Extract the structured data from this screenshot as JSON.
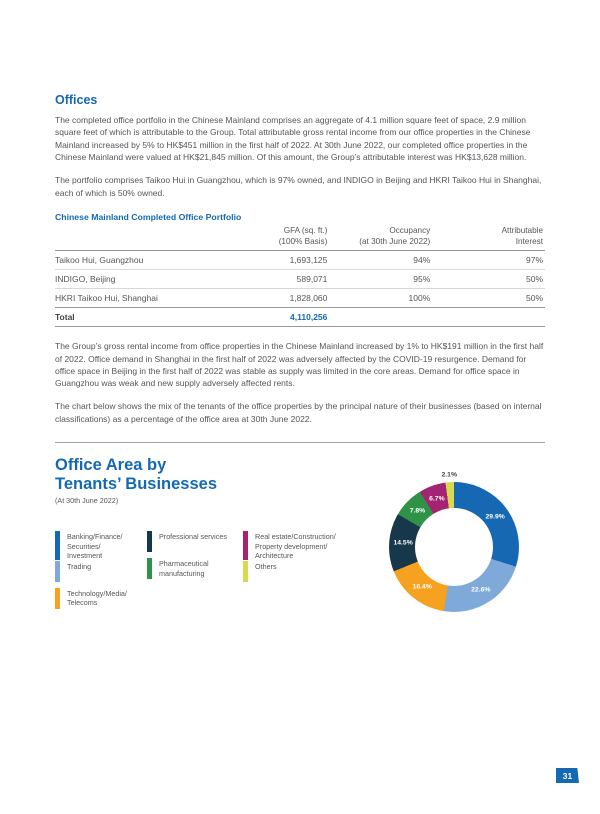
{
  "page": {
    "number": "31",
    "accent_blue": "#1569B3",
    "accent_green": "#3A9556",
    "body_text_color": "#54565A"
  },
  "offices": {
    "heading": "Offices",
    "para1": "The completed office portfolio in the Chinese Mainland comprises an aggregate of 4.1 million square feet of space, 2.9 million square feet of which is attributable to the Group. Total attributable gross rental income from our office properties in the Chinese Mainland increased by 5% to HK$451 million in the first half of 2022. At 30th June 2022, our completed office properties in the Chinese Mainland were valued at HK$21,845 million. Of this amount, the Group’s attributable interest was HK$13,628 million.",
    "para2": "The portfolio comprises Taikoo Hui in Guangzhou, which is 97% owned, and INDIGO in Beijing and HKRI Taikoo Hui in Shanghai, each of which is 50% owned."
  },
  "portfolio_table": {
    "title": "Chinese Mainland Completed Office Portfolio",
    "headers": {
      "gfa_line1": "GFA (sq. ft.)",
      "gfa_line2": "(100% Basis)",
      "occupancy_line1": "Occupancy",
      "occupancy_line2": "(at 30th June 2022)",
      "interest_line1": "Attributable",
      "interest_line2": "Interest"
    },
    "rows": [
      {
        "name": "Taikoo Hui, Guangzhou",
        "gfa": "1,693,125",
        "occupancy": "94%",
        "interest": "97%"
      },
      {
        "name": "INDIGO, Beijing",
        "gfa": "589,071",
        "occupancy": "95%",
        "interest": "50%"
      },
      {
        "name": "HKRI Taikoo Hui, Shanghai",
        "gfa": "1,828,060",
        "occupancy": "100%",
        "interest": "50%"
      }
    ],
    "total": {
      "label": "Total",
      "gfa": "4,110,256"
    }
  },
  "commentary": {
    "para3": "The Group’s gross rental income from office properties in the Chinese Mainland increased by 1% to HK$191 million in the first half of 2022. Office demand in Shanghai in the first half of 2022 was adversely affected by the COVID-19 resurgence. Demand for office space in Beijing in the first half of 2022 was stable as supply was limited in the core areas. Demand for office space in Guangzhou was weak and new supply adversely affected rents.",
    "para4": "The chart below shows the mix of the tenants of the office properties by the principal nature of their businesses (based on internal classifications) as a percentage of the office area at 30th June 2022."
  },
  "chart_section": {
    "title_line1": "Office Area by",
    "title_line2": "Tenants’ Businesses",
    "subtitle": "(At 30th June 2022)"
  },
  "chart_data": {
    "type": "pie",
    "donut": true,
    "title": "Office Area by Tenants’ Businesses",
    "subtitle": "(At 30th June 2022)",
    "unit": "percent of office area",
    "start_angle_deg": 0,
    "direction": "clockwise",
    "legend_position": "left of donut, three columns",
    "labels": [
      "Banking/Finance/Securities/Investment",
      "Trading",
      "Technology/Media/Telecoms",
      "Professional services",
      "Pharmaceutical manufacturing",
      "Real estate/Construction/Property development/Architecture",
      "Others"
    ],
    "values": [
      29.9,
      22.6,
      16.4,
      14.5,
      7.8,
      6.7,
      2.1
    ],
    "colors": [
      "#1768B3",
      "#7FA9D9",
      "#F6A11F",
      "#16384A",
      "#2E9247",
      "#A52373",
      "#D8DB4D"
    ],
    "legend_columns": [
      [
        {
          "label_lines": [
            "Banking/Finance/",
            "Securities/",
            "Investment"
          ],
          "color": "#1768B3"
        },
        {
          "label_lines": [
            "Trading"
          ],
          "color": "#7FA9D9"
        },
        {
          "label_lines": [
            "Technology/Media/",
            "Telecoms"
          ],
          "color": "#F6A11F"
        }
      ],
      [
        {
          "label_lines": [
            "Professional services"
          ],
          "color": "#16384A"
        },
        {
          "label_lines": [
            "Pharmaceutical",
            "manufacturing"
          ],
          "color": "#2E9247"
        }
      ],
      [
        {
          "label_lines": [
            "Real estate/Construction/",
            "Property development/",
            "Architecture"
          ],
          "color": "#A52373"
        },
        {
          "label_lines": [
            "Others"
          ],
          "color": "#D8DB4D"
        }
      ]
    ]
  }
}
